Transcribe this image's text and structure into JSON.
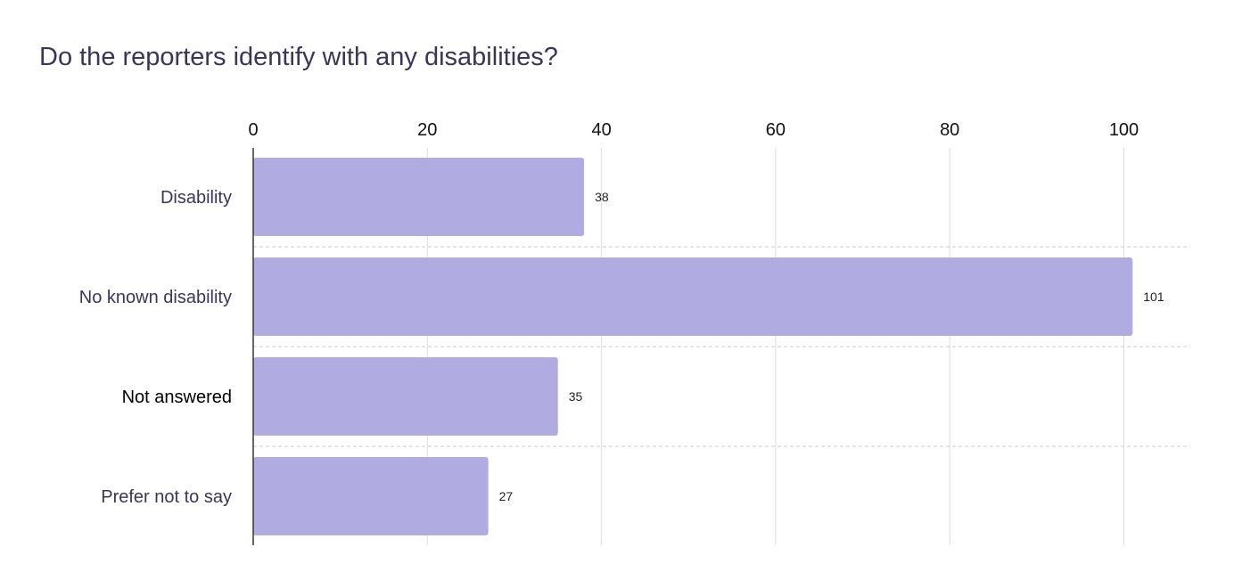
{
  "chart_data": {
    "type": "bar",
    "orientation": "horizontal",
    "title": "Do the reporters identify with any disabilities?",
    "categories": [
      "Disability",
      "No known disability",
      "Not answered",
      "Prefer not to say"
    ],
    "values": [
      38,
      101,
      35,
      27
    ],
    "value_labels": [
      "38",
      "101",
      "35",
      "27"
    ],
    "xlim": [
      0,
      108
    ],
    "xticks": [
      0,
      20,
      40,
      60,
      80,
      100
    ],
    "xtick_labels": [
      "0",
      "20",
      "40",
      "60",
      "80",
      "100"
    ],
    "xlabel": "",
    "ylabel": "",
    "grid": true,
    "axis_position": "top",
    "bar_color": "#b0ace2",
    "title_color": "#3a3656",
    "emphasized_category": "Not answered"
  }
}
